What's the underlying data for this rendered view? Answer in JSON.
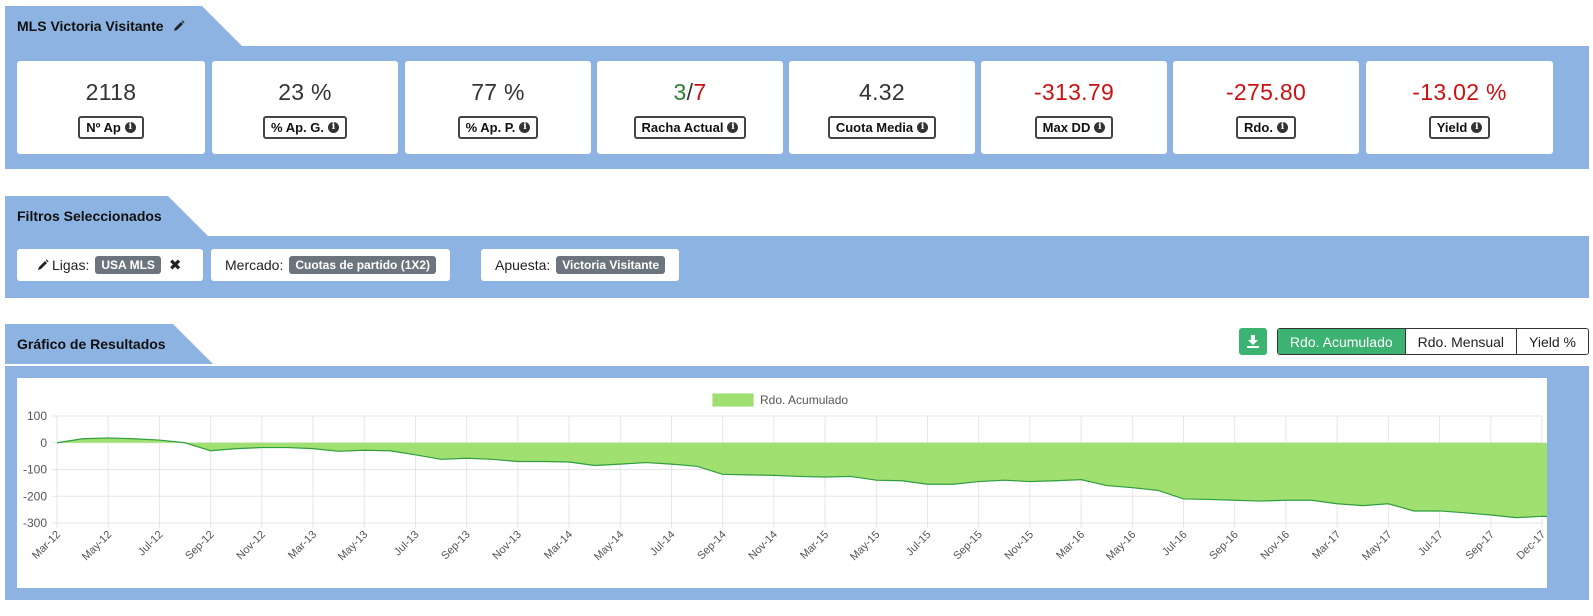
{
  "stats_tab": {
    "title": "MLS Victoria Visitante",
    "edit_icon": "pencil-icon"
  },
  "stats": [
    {
      "value": "2118",
      "label": "Nº Ap",
      "color": "#333333"
    },
    {
      "value": "23 %",
      "label": "% Ap. G.",
      "color": "#333333"
    },
    {
      "value": "77 %",
      "label": "% Ap. P.",
      "color": "#333333"
    },
    {
      "value_won": "3",
      "value_sep": "/",
      "value_lost": "7",
      "label": "Racha Actual"
    },
    {
      "value": "4.32",
      "label": "Cuota Media",
      "color": "#333333"
    },
    {
      "value": "-313.79",
      "label": "Max DD",
      "color": "#cc1111"
    },
    {
      "value": "-275.80",
      "label": "Rdo.",
      "color": "#cc1111"
    },
    {
      "value": "-13.02 %",
      "label": "Yield",
      "color": "#cc1111"
    }
  ],
  "filters_tab": {
    "title": "Filtros Seleccionados"
  },
  "filters": [
    {
      "label": "Ligas:",
      "value": "USA MLS",
      "icon": "pencil-icon",
      "removable": true
    },
    {
      "label": "Mercado:",
      "value": "Cuotas de partido (1X2)"
    },
    {
      "label": "Apuesta:",
      "value": "Victoria Visitante"
    }
  ],
  "chart_tab": {
    "title": "Gráfico de Resultados"
  },
  "chart_buttons": {
    "download_icon": "download-icon",
    "cumulative": "Rdo. Acumulado",
    "monthly": "Rdo. Mensual",
    "yield": "Yield %"
  },
  "colors": {
    "panel": "#8db3e2",
    "accent_green": "#3cb371",
    "area_fill": "#a0e070",
    "area_line": "#2e9e3e",
    "negative": "#cc1111"
  },
  "chart_data": {
    "type": "area",
    "legend": "Rdo. Acumulado",
    "legend_position": "top-center",
    "grid": true,
    "ylim": [
      -300,
      100
    ],
    "yticks": [
      100,
      0,
      -100,
      -200,
      -300
    ],
    "xticks": [
      "Mar-12",
      "May-12",
      "Jul-12",
      "Sep-12",
      "Nov-12",
      "Mar-13",
      "May-13",
      "Jul-13",
      "Sep-13",
      "Nov-13",
      "Mar-14",
      "May-14",
      "Jul-14",
      "Sep-14",
      "Nov-14",
      "Mar-15",
      "May-15",
      "Jul-15",
      "Sep-15",
      "Nov-15",
      "Mar-16",
      "May-16",
      "Jul-16",
      "Sep-16",
      "Nov-16",
      "Mar-17",
      "May-17",
      "Jul-17",
      "Sep-17",
      "Dec-17"
    ],
    "points": [
      [
        0,
        0
      ],
      [
        0.5,
        15
      ],
      [
        1,
        18
      ],
      [
        1.5,
        15
      ],
      [
        2,
        10
      ],
      [
        2.5,
        0
      ],
      [
        3,
        -30
      ],
      [
        3.5,
        -22
      ],
      [
        4,
        -18
      ],
      [
        4.5,
        -18
      ],
      [
        5,
        -22
      ],
      [
        5.5,
        -32
      ],
      [
        6,
        -28
      ],
      [
        6.5,
        -30
      ],
      [
        7,
        -45
      ],
      [
        7.5,
        -62
      ],
      [
        8,
        -58
      ],
      [
        8.5,
        -62
      ],
      [
        9,
        -70
      ],
      [
        9.5,
        -70
      ],
      [
        10,
        -72
      ],
      [
        10.5,
        -85
      ],
      [
        11,
        -80
      ],
      [
        11.5,
        -74
      ],
      [
        12,
        -80
      ],
      [
        12.5,
        -88
      ],
      [
        13,
        -118
      ],
      [
        13.5,
        -120
      ],
      [
        14,
        -122
      ],
      [
        14.5,
        -126
      ],
      [
        15,
        -128
      ],
      [
        15.5,
        -126
      ],
      [
        16,
        -140
      ],
      [
        16.5,
        -142
      ],
      [
        17,
        -155
      ],
      [
        17.5,
        -155
      ],
      [
        18,
        -145
      ],
      [
        18.5,
        -140
      ],
      [
        19,
        -145
      ],
      [
        19.5,
        -142
      ],
      [
        20,
        -138
      ],
      [
        20.5,
        -160
      ],
      [
        21,
        -168
      ],
      [
        21.5,
        -178
      ],
      [
        22,
        -210
      ],
      [
        22.5,
        -212
      ],
      [
        23,
        -215
      ],
      [
        23.5,
        -218
      ],
      [
        24,
        -215
      ],
      [
        24.5,
        -215
      ],
      [
        25,
        -228
      ],
      [
        25.5,
        -235
      ],
      [
        26,
        -228
      ],
      [
        26.5,
        -255
      ],
      [
        27,
        -255
      ],
      [
        27.5,
        -262
      ],
      [
        28,
        -270
      ],
      [
        28.5,
        -280
      ],
      [
        29,
        -275
      ],
      [
        29.5,
        -278
      ]
    ]
  }
}
